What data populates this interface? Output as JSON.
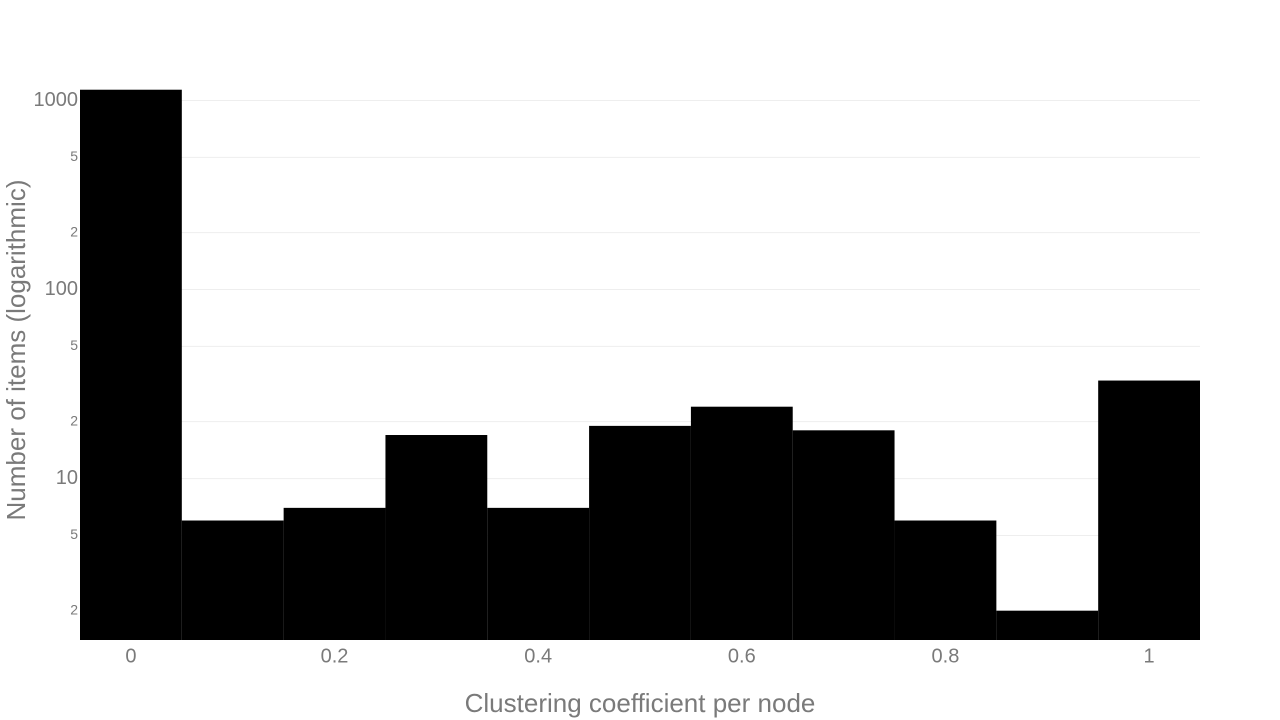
{
  "chart_data": {
    "type": "histogram",
    "x_label": "Clustering coefficient per node",
    "y_label": "Number of items (logarithmic)",
    "bins": [
      -0.05,
      0.05,
      0.15,
      0.25,
      0.35,
      0.45,
      0.55,
      0.65,
      0.75,
      0.85,
      0.95,
      1.05
    ],
    "values": [
      1140,
      6,
      7,
      17,
      7,
      19,
      24,
      18,
      6,
      2,
      33
    ],
    "color": "#000000",
    "xlim": [
      -0.05,
      1.05
    ],
    "xticks": [
      0,
      0.2,
      0.4,
      0.6,
      0.8,
      1
    ],
    "ylim": [
      1.4,
      1150
    ],
    "log_y": true,
    "yticks": [
      {
        "value": 2,
        "label": "2"
      },
      {
        "value": 5,
        "label": "5"
      },
      10,
      {
        "value": 20,
        "label": "2"
      },
      {
        "value": 50,
        "label": "5"
      },
      100,
      {
        "value": 200,
        "label": "2"
      },
      {
        "value": 500,
        "label": "5"
      },
      1000
    ],
    "grid": true
  }
}
